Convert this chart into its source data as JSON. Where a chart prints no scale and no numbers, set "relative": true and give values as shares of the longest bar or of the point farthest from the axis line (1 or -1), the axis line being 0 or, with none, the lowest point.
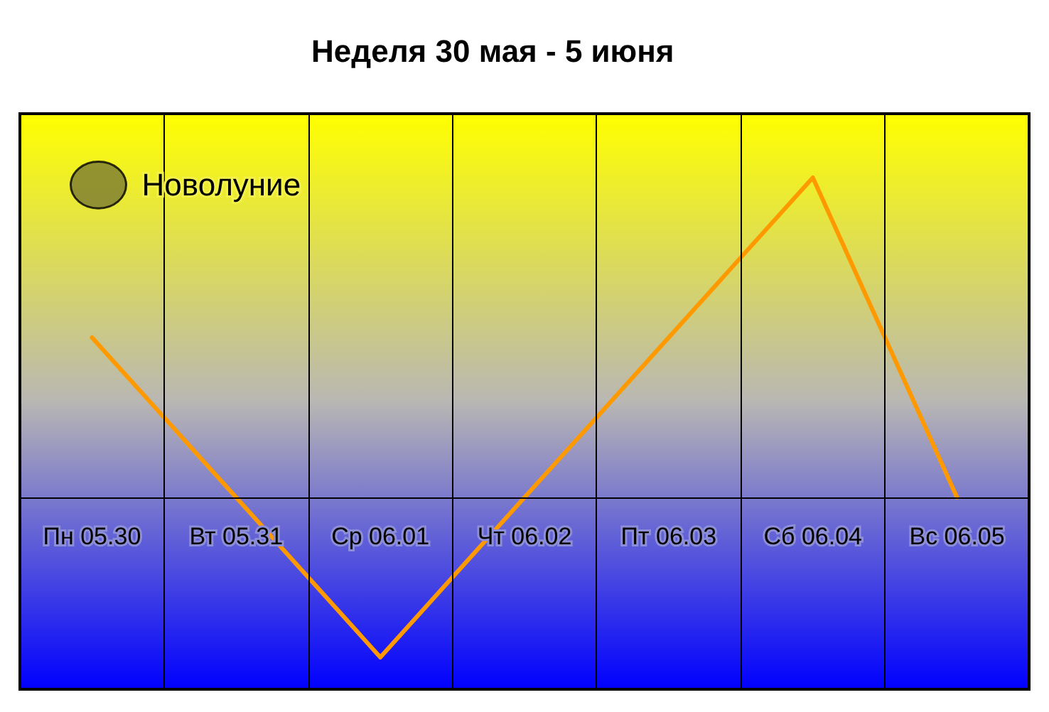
{
  "chart_data": {
    "type": "line",
    "title": "Неделя 30 мая - 5 июня",
    "categories": [
      "Пн 05.30",
      "Вт 05.31",
      "Ср 06.01",
      "Чт 06.02",
      "Пт 06.03",
      "Сб 06.04",
      "Вс 06.05"
    ],
    "relative": true,
    "series": [
      {
        "color": "#ff9900",
        "values": [
          0.5,
          0,
          -0.5,
          0,
          0.5,
          1,
          0
        ]
      },
      {
        "name": "Новолуние",
        "type": "scatter",
        "color": "#7b7a33",
        "values": [
          null,
          null,
          null,
          null,
          null,
          null,
          null
        ]
      }
    ],
    "grid": "x",
    "legend": "top left",
    "marker": "none",
    "line_style": "solid"
  }
}
